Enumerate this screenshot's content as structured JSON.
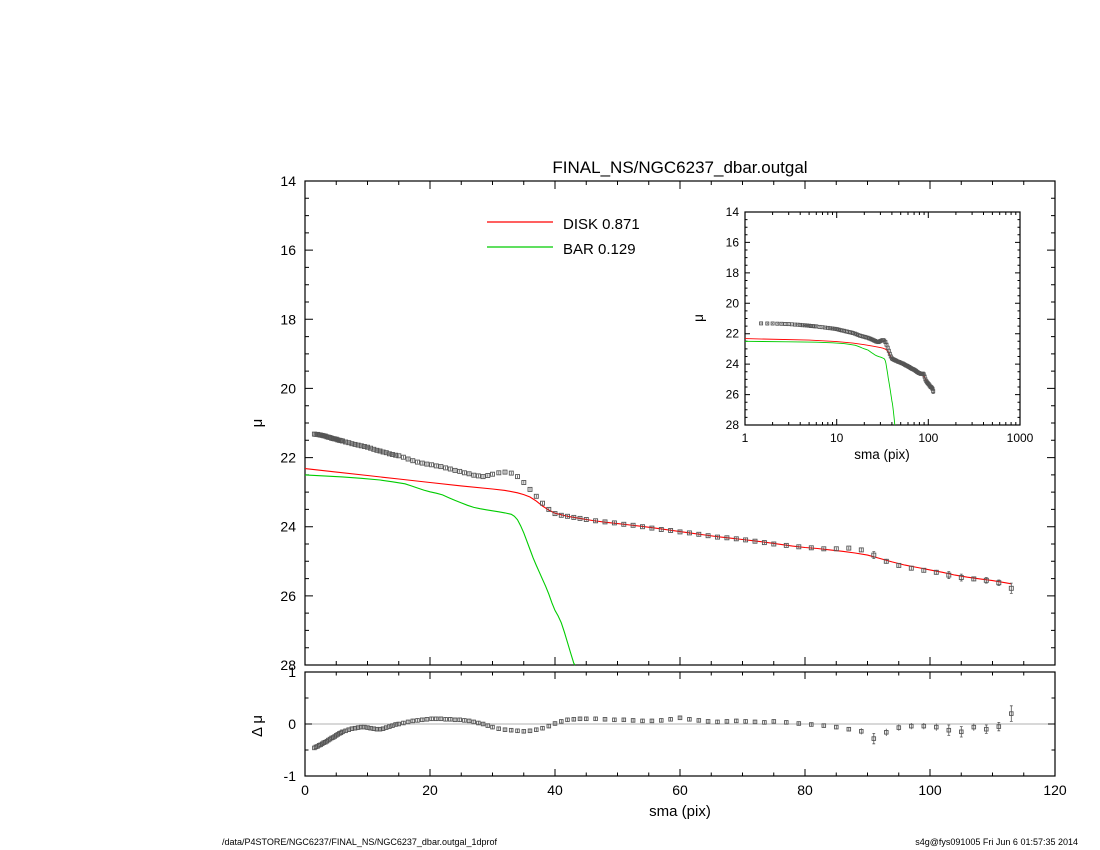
{
  "title": "FINAL_NS/NGC6237_dbar.outgal",
  "footer": {
    "left": "/data/P4STORE/NGC6237/FINAL_NS/NGC6237_dbar.outgal_1dprof",
    "right": "s4g@fys091005  Fri Jun  6 01:57:35 2014"
  },
  "chart_data": {
    "type": "scatter+line",
    "title": "FINAL_NS/NGC6237_dbar.outgal",
    "xlabel": "sma (pix)",
    "legend": [
      {
        "text": "DISK  0.871",
        "color": "#ff0000"
      },
      {
        "text": "BAR  0.129",
        "color": "#00cc00"
      }
    ],
    "colors": {
      "disk": "#ff0000",
      "bar": "#00cc00",
      "data": "#555555",
      "zero_line": "#b0b0b0"
    },
    "main": {
      "ylabel": "μ",
      "xlim": [
        0,
        120
      ],
      "ylim": [
        28,
        14
      ],
      "x_ticks": [
        0,
        20,
        40,
        60,
        80,
        100,
        120
      ],
      "y_ticks": [
        14,
        16,
        18,
        20,
        22,
        24,
        26,
        28
      ],
      "y_inverted": true
    },
    "residual": {
      "ylabel": "Δ μ",
      "ylim": [
        -1,
        1
      ],
      "y_ticks": [
        1,
        0,
        -1
      ]
    },
    "inset": {
      "xlabel": "sma (pix)",
      "ylabel": "μ",
      "xscale": "log",
      "xlim": [
        1,
        1000
      ],
      "x_ticks": [
        1,
        10,
        100,
        1000
      ],
      "ylim": [
        28,
        14
      ],
      "y_ticks": [
        14,
        16,
        18,
        20,
        22,
        24,
        26,
        28
      ]
    },
    "columns": [
      "sma",
      "mu",
      "residual",
      "err_optional"
    ],
    "default_err": 0.04,
    "profile": [
      [
        1.5,
        21.32,
        -0.46
      ],
      [
        1.75,
        21.33,
        -0.44
      ],
      [
        2,
        21.33,
        -0.43
      ],
      [
        2.25,
        21.34,
        -0.41
      ],
      [
        2.5,
        21.35,
        -0.4
      ],
      [
        2.75,
        21.36,
        -0.38
      ],
      [
        3,
        21.37,
        -0.36
      ],
      [
        3.25,
        21.38,
        -0.35
      ],
      [
        3.5,
        21.4,
        -0.33
      ],
      [
        3.75,
        21.41,
        -0.31
      ],
      [
        4,
        21.42,
        -0.29
      ],
      [
        4.25,
        21.44,
        -0.27
      ],
      [
        4.5,
        21.45,
        -0.26
      ],
      [
        4.75,
        21.46,
        -0.24
      ],
      [
        5,
        21.47,
        -0.22
      ],
      [
        5.25,
        21.49,
        -0.2
      ],
      [
        5.5,
        21.5,
        -0.18
      ],
      [
        5.75,
        21.51,
        -0.17
      ],
      [
        6,
        21.52,
        -0.15
      ],
      [
        6.5,
        21.55,
        -0.13
      ],
      [
        7,
        21.57,
        -0.11
      ],
      [
        7.5,
        21.6,
        -0.09
      ],
      [
        8,
        21.62,
        -0.08
      ],
      [
        8.5,
        21.64,
        -0.07
      ],
      [
        9,
        21.66,
        -0.06
      ],
      [
        9.5,
        21.68,
        -0.06
      ],
      [
        10,
        21.7,
        -0.07
      ],
      [
        10.5,
        21.73,
        -0.08
      ],
      [
        11,
        21.76,
        -0.09
      ],
      [
        11.5,
        21.79,
        -0.1
      ],
      [
        12,
        21.81,
        -0.1
      ],
      [
        12.5,
        21.84,
        -0.09
      ],
      [
        13,
        21.86,
        -0.07
      ],
      [
        13.5,
        21.89,
        -0.05
      ],
      [
        14,
        21.91,
        -0.03
      ],
      [
        14.5,
        21.93,
        -0.01
      ],
      [
        15,
        21.95,
        0.0
      ],
      [
        15.75,
        21.99,
        0.02
      ],
      [
        16.5,
        22.04,
        0.04
      ],
      [
        17.25,
        22.09,
        0.06
      ],
      [
        18,
        22.13,
        0.07
      ],
      [
        18.75,
        22.16,
        0.08
      ],
      [
        19.5,
        22.19,
        0.09
      ],
      [
        20.25,
        22.21,
        0.1
      ],
      [
        21,
        22.24,
        0.1
      ],
      [
        21.75,
        22.26,
        0.1
      ],
      [
        22.5,
        22.3,
        0.09
      ],
      [
        23.25,
        22.33,
        0.09
      ],
      [
        24,
        22.37,
        0.08
      ],
      [
        24.75,
        22.4,
        0.08
      ],
      [
        25.5,
        22.44,
        0.07
      ],
      [
        26.25,
        22.47,
        0.06
      ],
      [
        27,
        22.51,
        0.04
      ],
      [
        27.75,
        22.53,
        0.02
      ],
      [
        28.5,
        22.55,
        0.0
      ],
      [
        29.25,
        22.52,
        -0.03
      ],
      [
        30,
        22.48,
        -0.06
      ],
      [
        31,
        22.44,
        -0.09
      ],
      [
        32,
        22.42,
        -0.11
      ],
      [
        33,
        22.45,
        -0.12
      ],
      [
        34,
        22.55,
        -0.13
      ],
      [
        35,
        22.72,
        -0.14
      ],
      [
        36,
        22.92,
        -0.13
      ],
      [
        37,
        23.12,
        -0.11
      ],
      [
        38,
        23.32,
        -0.08
      ],
      [
        39,
        23.5,
        -0.04
      ],
      [
        40,
        23.62,
        0.01
      ],
      [
        41,
        23.67,
        0.05
      ],
      [
        42,
        23.7,
        0.08
      ],
      [
        43,
        23.73,
        0.09
      ],
      [
        44,
        23.76,
        0.1
      ],
      [
        45,
        23.79,
        0.1
      ],
      [
        46.5,
        23.83,
        0.1
      ],
      [
        48,
        23.86,
        0.09
      ],
      [
        49.5,
        23.89,
        0.08
      ],
      [
        51,
        23.93,
        0.08
      ],
      [
        52.5,
        23.96,
        0.07
      ],
      [
        54,
        24.0,
        0.06
      ],
      [
        55.5,
        24.04,
        0.06
      ],
      [
        57,
        24.08,
        0.07
      ],
      [
        58.5,
        24.11,
        0.09
      ],
      [
        60,
        24.15,
        0.12
      ],
      [
        61.5,
        24.18,
        0.09
      ],
      [
        63,
        24.22,
        0.07
      ],
      [
        64.5,
        24.26,
        0.05
      ],
      [
        66,
        24.3,
        0.04
      ],
      [
        67.5,
        24.32,
        0.05
      ],
      [
        69,
        24.35,
        0.06
      ],
      [
        70.5,
        24.38,
        0.05
      ],
      [
        72,
        24.42,
        0.04
      ],
      [
        73.5,
        24.46,
        0.03
      ],
      [
        75,
        24.5,
        0.05
      ],
      [
        77,
        24.54,
        0.03
      ],
      [
        79,
        24.58,
        0.01
      ],
      [
        81,
        24.61,
        -0.01
      ],
      [
        83,
        24.64,
        -0.03
      ],
      [
        85,
        24.64,
        -0.06
      ],
      [
        87,
        24.62,
        -0.1
      ],
      [
        89,
        24.67,
        -0.14,
        0.06
      ],
      [
        91,
        24.82,
        -0.28,
        0.1
      ],
      [
        93,
        25.0,
        -0.16,
        0.07
      ],
      [
        95,
        25.12,
        -0.07,
        0.06
      ],
      [
        97,
        25.2,
        -0.04,
        0.06
      ],
      [
        99,
        25.26,
        -0.04,
        0.06
      ],
      [
        101,
        25.32,
        -0.06,
        0.07
      ],
      [
        103,
        25.4,
        -0.12,
        0.1
      ],
      [
        105,
        25.47,
        -0.15,
        0.1
      ],
      [
        107,
        25.51,
        -0.06,
        0.07
      ],
      [
        109,
        25.55,
        -0.1,
        0.08
      ],
      [
        111,
        25.62,
        -0.05,
        0.08
      ],
      [
        113,
        25.78,
        0.2,
        0.15
      ]
    ],
    "disk_line": [
      [
        0,
        22.32
      ],
      [
        5,
        22.42
      ],
      [
        10,
        22.52
      ],
      [
        15,
        22.62
      ],
      [
        20,
        22.72
      ],
      [
        25,
        22.82
      ],
      [
        30,
        22.91
      ],
      [
        32,
        22.95
      ],
      [
        34,
        23.02
      ],
      [
        35,
        23.07
      ],
      [
        36,
        23.14
      ],
      [
        37,
        23.26
      ],
      [
        38,
        23.4
      ],
      [
        39,
        23.52
      ],
      [
        40,
        23.61
      ],
      [
        42,
        23.7
      ],
      [
        44,
        23.76
      ],
      [
        46,
        23.82
      ],
      [
        48,
        23.87
      ],
      [
        50,
        23.91
      ],
      [
        52,
        23.95
      ],
      [
        54,
        23.99
      ],
      [
        56,
        24.04
      ],
      [
        58,
        24.09
      ],
      [
        60,
        24.14
      ],
      [
        62,
        24.19
      ],
      [
        64,
        24.24
      ],
      [
        66,
        24.29
      ],
      [
        68,
        24.33
      ],
      [
        70,
        24.37
      ],
      [
        72,
        24.41
      ],
      [
        74,
        24.46
      ],
      [
        76,
        24.51
      ],
      [
        78,
        24.56
      ],
      [
        80,
        24.6
      ],
      [
        82,
        24.63
      ],
      [
        84,
        24.67
      ],
      [
        86,
        24.71
      ],
      [
        88,
        24.76
      ],
      [
        90,
        24.82
      ],
      [
        92,
        24.92
      ],
      [
        94,
        25.02
      ],
      [
        96,
        25.11
      ],
      [
        98,
        25.18
      ],
      [
        100,
        25.25
      ],
      [
        102,
        25.32
      ],
      [
        104,
        25.4
      ],
      [
        106,
        25.46
      ],
      [
        108,
        25.51
      ],
      [
        110,
        25.56
      ],
      [
        112,
        25.62
      ],
      [
        113,
        25.65
      ]
    ],
    "bar_line": [
      [
        0,
        22.5
      ],
      [
        3,
        22.53
      ],
      [
        6,
        22.56
      ],
      [
        9,
        22.6
      ],
      [
        12,
        22.65
      ],
      [
        14,
        22.7
      ],
      [
        16,
        22.76
      ],
      [
        17,
        22.82
      ],
      [
        18,
        22.88
      ],
      [
        19,
        22.94
      ],
      [
        20,
        22.99
      ],
      [
        21,
        23.03
      ],
      [
        22,
        23.08
      ],
      [
        23,
        23.16
      ],
      [
        24,
        23.24
      ],
      [
        25,
        23.31
      ],
      [
        26,
        23.38
      ],
      [
        27,
        23.44
      ],
      [
        28,
        23.48
      ],
      [
        29,
        23.51
      ],
      [
        30,
        23.54
      ],
      [
        31,
        23.57
      ],
      [
        32,
        23.6
      ],
      [
        33,
        23.64
      ],
      [
        33.5,
        23.7
      ],
      [
        34,
        23.8
      ],
      [
        34.5,
        23.97
      ],
      [
        35,
        24.18
      ],
      [
        35.5,
        24.42
      ],
      [
        36,
        24.66
      ],
      [
        36.5,
        24.9
      ],
      [
        37,
        25.12
      ],
      [
        37.5,
        25.32
      ],
      [
        38,
        25.52
      ],
      [
        38.5,
        25.72
      ],
      [
        39,
        25.95
      ],
      [
        39.5,
        26.2
      ],
      [
        40,
        26.42
      ],
      [
        40.5,
        26.58
      ],
      [
        41,
        26.78
      ],
      [
        41.5,
        27.05
      ],
      [
        42,
        27.35
      ],
      [
        42.5,
        27.65
      ],
      [
        43,
        27.95
      ],
      [
        43.2,
        28.0
      ]
    ]
  }
}
